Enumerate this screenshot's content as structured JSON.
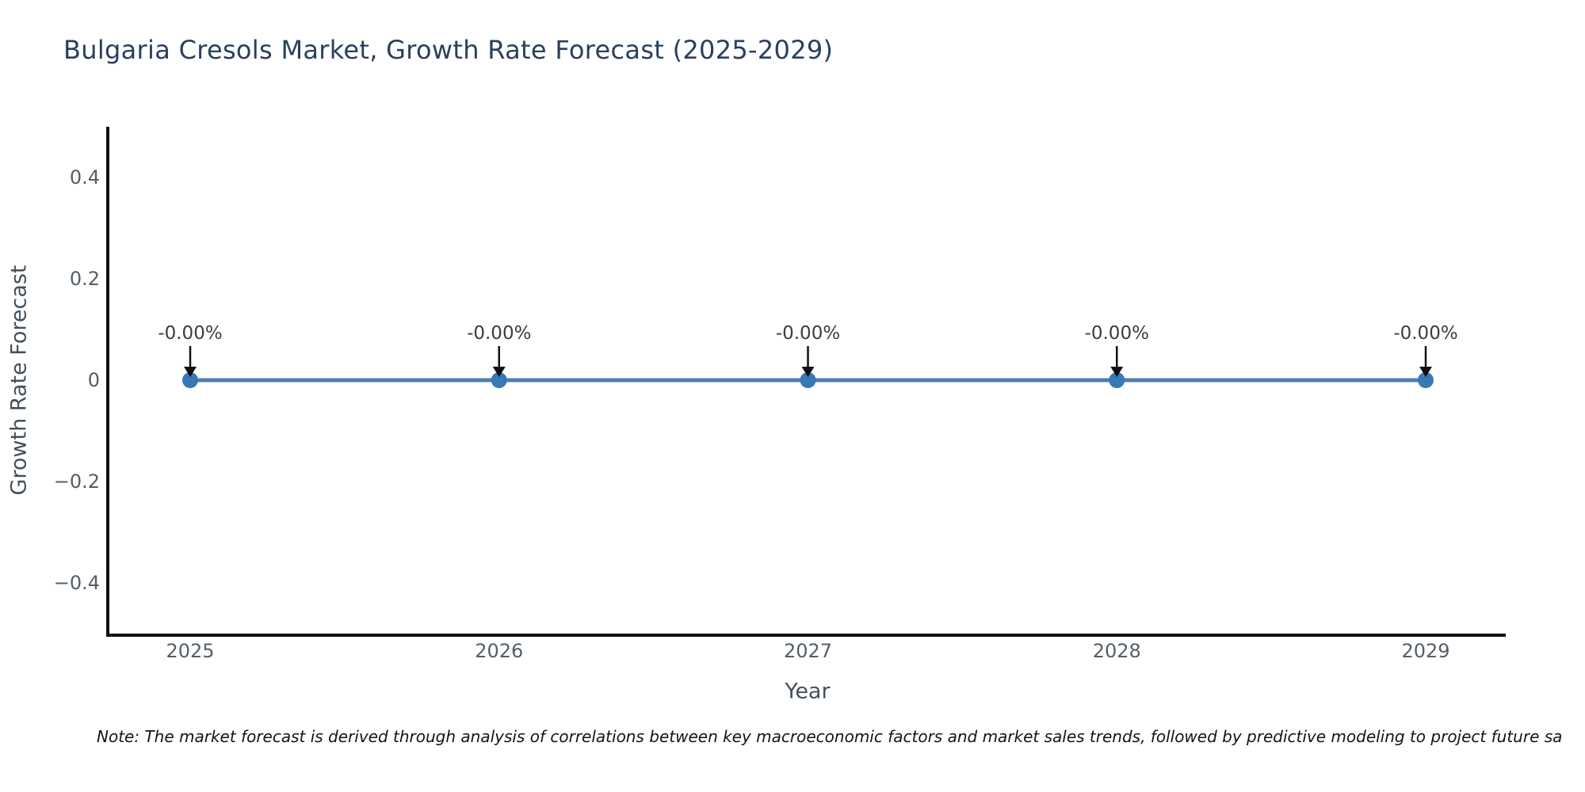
{
  "title": "Bulgaria Cresols Market, Growth Rate Forecast (2025-2029)",
  "note": "Note: The market forecast is derived through analysis of correlations between key macroeconomic factors and market sales trends, followed by predictive modeling to project future sa",
  "chart_data": {
    "type": "line",
    "title": "Bulgaria Cresols Market, Growth Rate Forecast (2025-2029)",
    "xlabel": "Year",
    "ylabel": "Growth Rate Forecast",
    "categories": [
      "2025",
      "2026",
      "2027",
      "2028",
      "2029"
    ],
    "series": [
      {
        "name": "Growth Rate Forecast",
        "values": [
          0,
          0,
          0,
          0,
          0
        ]
      }
    ],
    "point_labels": [
      "-0.00%",
      "-0.00%",
      "-0.00%",
      "-0.00%",
      "-0.00%"
    ],
    "y_ticks": [
      0.4,
      0.2,
      0,
      -0.2,
      -0.4
    ],
    "y_tick_labels": [
      "0.4",
      "0.2",
      "0",
      "−0.2",
      "−0.4"
    ],
    "ylim": [
      -0.5,
      0.5
    ],
    "grid": false,
    "legend": "none",
    "annotation_arrows": "down",
    "colors": {
      "line": "#4e80ab",
      "marker": "#3878b4",
      "arrow": "#111111",
      "axis": "#111111",
      "title": "#2a3f5f",
      "tick": "#555e68",
      "axis_label": "#44505c",
      "note": "#141414"
    }
  }
}
